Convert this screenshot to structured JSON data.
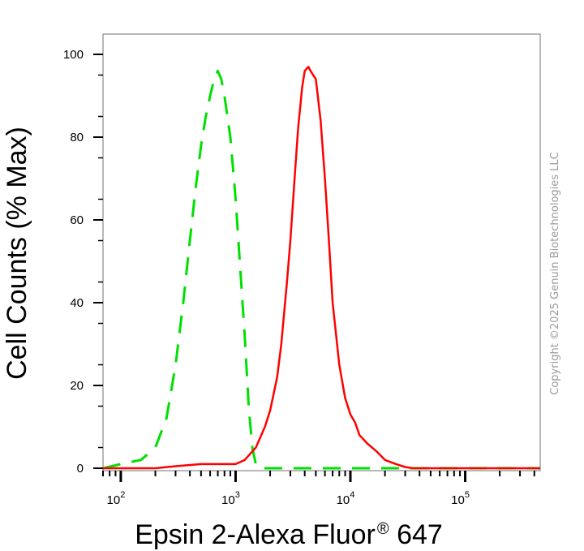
{
  "chart_data": {
    "type": "line",
    "title": "",
    "xlabel": "Epsin 2-Alexa Fluor",
    "xlabel_superscript": "®",
    "xlabel_suffix": " 647",
    "ylabel": "Cell Counts (% Max)",
    "x_scale": "log",
    "xlim": [
      70,
      450000
    ],
    "ylim": [
      0,
      105
    ],
    "y_ticks": [
      0,
      20,
      40,
      60,
      80,
      100
    ],
    "x_ticks": [
      {
        "value": 100,
        "base": "10",
        "exp": "2"
      },
      {
        "value": 1000,
        "base": "10",
        "exp": "3"
      },
      {
        "value": 10000,
        "base": "10",
        "exp": "4"
      },
      {
        "value": 100000,
        "base": "10",
        "exp": "5"
      }
    ],
    "grid": false,
    "legend": "none",
    "series": [
      {
        "color": "#00e000",
        "dash": "dashed",
        "x": [
          70,
          100,
          150,
          200,
          250,
          300,
          350,
          400,
          450,
          500,
          550,
          600,
          650,
          700,
          750,
          800,
          900,
          1000,
          1100,
          1200,
          1300,
          1400,
          1500,
          1600,
          2000,
          3000,
          10000,
          100000,
          450000
        ],
        "y": [
          0,
          1,
          2,
          5,
          12,
          25,
          40,
          55,
          68,
          78,
          85,
          90,
          94,
          96,
          94,
          90,
          80,
          65,
          48,
          32,
          15,
          5,
          1,
          0,
          0,
          0,
          0,
          0,
          0
        ]
      },
      {
        "color": "#ff0000",
        "dash": "solid",
        "x": [
          70,
          200,
          300,
          500,
          1000,
          1200,
          1500,
          1800,
          2000,
          2300,
          2500,
          2800,
          3000,
          3300,
          3500,
          3800,
          4000,
          4300,
          4500,
          5000,
          5500,
          6000,
          6500,
          7000,
          8000,
          9000,
          10000,
          11000,
          12000,
          14000,
          17000,
          20000,
          25000,
          30000,
          35000,
          50000,
          100000,
          450000
        ],
        "y": [
          0,
          0,
          0.5,
          1,
          1,
          2,
          5,
          10,
          14,
          22,
          30,
          45,
          55,
          72,
          82,
          92,
          96,
          97,
          96,
          94,
          84,
          70,
          55,
          40,
          25,
          17,
          13,
          11,
          8,
          6,
          4,
          2,
          1,
          0.3,
          0,
          0,
          0,
          0
        ]
      }
    ]
  },
  "copyright": "Copyright ©2025 Genuin Biotechnologies LLC"
}
